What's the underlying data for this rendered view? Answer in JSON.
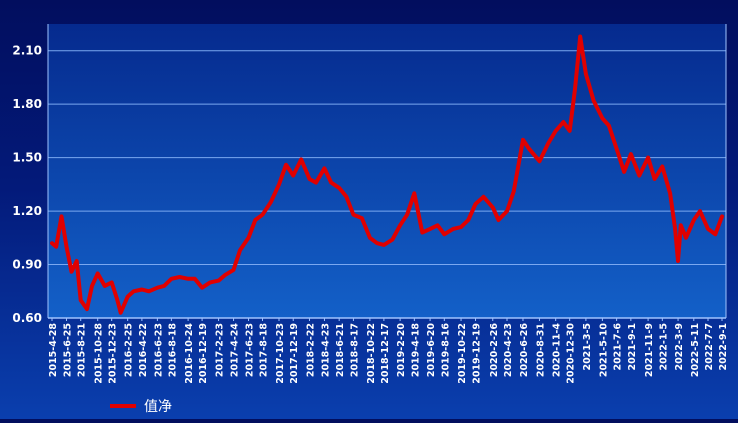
{
  "chart_data": {
    "type": "line",
    "title": "",
    "xlabel": "",
    "ylabel": "",
    "ylim": [
      0.6,
      2.25
    ],
    "yticks": [
      0.6,
      0.9,
      1.2,
      1.5,
      1.8,
      2.1
    ],
    "ytick_labels": [
      "0.60",
      "0.90",
      "1.20",
      "1.50",
      "1.80",
      "2.10"
    ],
    "xtick_labels": [
      "2015-4-28",
      "2015-6-25",
      "2015-8-21",
      "2015-10-28",
      "2015-12-23",
      "2016-2-25",
      "2016-4-22",
      "2016-6-23",
      "2016-8-18",
      "2016-10-24",
      "2016-12-19",
      "2017-2-23",
      "2017-4-24",
      "2017-6-23",
      "2017-8-18",
      "2017-10-23",
      "2017-12-19",
      "2018-2-22",
      "2018-4-23",
      "2018-6-21",
      "2018-8-17",
      "2018-10-22",
      "2018-12-17",
      "2019-2-20",
      "2019-4-18",
      "2019-6-20",
      "2019-8-16",
      "2019-10-22",
      "2019-12-19",
      "2020-2-26",
      "2020-4-23",
      "2020-6-26",
      "2020-8-31",
      "2020-11-4",
      "2020-12-30",
      "2021-3-5",
      "2021-5-10",
      "2021-7-6",
      "2021-9-1",
      "2021-11-9",
      "2022-1-5",
      "2022-3-9",
      "2022-5-11",
      "2022-7-7",
      "2022-9-1"
    ],
    "grid": true,
    "legend_position": "bottom-left",
    "series": [
      {
        "name": "值净",
        "color": "#e00000",
        "x": [
          "2015-4-28",
          "2015-5-15",
          "2015-6-5",
          "2015-6-25",
          "2015-7-15",
          "2015-8-5",
          "2015-8-21",
          "2015-9-15",
          "2015-10-5",
          "2015-10-28",
          "2015-11-25",
          "2015-12-23",
          "2016-1-15",
          "2016-1-28",
          "2016-2-25",
          "2016-3-20",
          "2016-4-22",
          "2016-5-20",
          "2016-6-23",
          "2016-7-20",
          "2016-8-18",
          "2016-9-20",
          "2016-10-24",
          "2016-11-20",
          "2016-12-19",
          "2017-1-20",
          "2017-2-23",
          "2017-3-20",
          "2017-4-24",
          "2017-5-20",
          "2017-6-23",
          "2017-7-20",
          "2017-8-18",
          "2017-9-20",
          "2017-10-23",
          "2017-11-20",
          "2017-12-19",
          "2018-1-20",
          "2018-2-22",
          "2018-3-20",
          "2018-4-23",
          "2018-5-20",
          "2018-6-21",
          "2018-7-20",
          "2018-8-17",
          "2018-9-20",
          "2018-10-22",
          "2018-11-20",
          "2018-12-17",
          "2019-1-20",
          "2019-2-20",
          "2019-3-20",
          "2019-4-18",
          "2019-5-20",
          "2019-6-20",
          "2019-7-20",
          "2019-8-16",
          "2019-9-20",
          "2019-10-22",
          "2019-11-20",
          "2019-12-19",
          "2020-1-20",
          "2020-2-26",
          "2020-3-20",
          "2020-4-23",
          "2020-5-20",
          "2020-6-26",
          "2020-7-20",
          "2020-8-31",
          "2020-10-5",
          "2020-11-4",
          "2020-12-5",
          "2020-12-30",
          "2021-1-20",
          "2021-2-10",
          "2021-3-5",
          "2021-4-5",
          "2021-5-10",
          "2021-6-5",
          "2021-7-6",
          "2021-8-5",
          "2021-9-1",
          "2021-10-5",
          "2021-11-9",
          "2021-12-5",
          "2022-1-5",
          "2022-2-5",
          "2022-2-25",
          "2022-3-9",
          "2022-3-20",
          "2022-4-10",
          "2022-5-11",
          "2022-6-5",
          "2022-7-7",
          "2022-8-5",
          "2022-9-1"
        ],
        "values": [
          1.02,
          1.0,
          1.17,
          1.0,
          0.86,
          0.92,
          0.7,
          0.65,
          0.78,
          0.85,
          0.78,
          0.8,
          0.7,
          0.63,
          0.72,
          0.75,
          0.76,
          0.75,
          0.77,
          0.78,
          0.82,
          0.83,
          0.82,
          0.82,
          0.77,
          0.8,
          0.81,
          0.84,
          0.87,
          0.98,
          1.05,
          1.15,
          1.18,
          1.25,
          1.35,
          1.46,
          1.4,
          1.49,
          1.38,
          1.36,
          1.44,
          1.36,
          1.33,
          1.28,
          1.18,
          1.16,
          1.05,
          1.02,
          1.01,
          1.04,
          1.12,
          1.18,
          1.3,
          1.08,
          1.1,
          1.12,
          1.07,
          1.1,
          1.11,
          1.15,
          1.24,
          1.28,
          1.22,
          1.15,
          1.2,
          1.31,
          1.6,
          1.55,
          1.48,
          1.58,
          1.65,
          1.7,
          1.65,
          1.88,
          2.18,
          1.97,
          1.82,
          1.72,
          1.68,
          1.55,
          1.42,
          1.52,
          1.4,
          1.5,
          1.38,
          1.45,
          1.3,
          1.1,
          0.92,
          1.12,
          1.05,
          1.15,
          1.2,
          1.1,
          1.07,
          1.17
        ]
      }
    ]
  }
}
